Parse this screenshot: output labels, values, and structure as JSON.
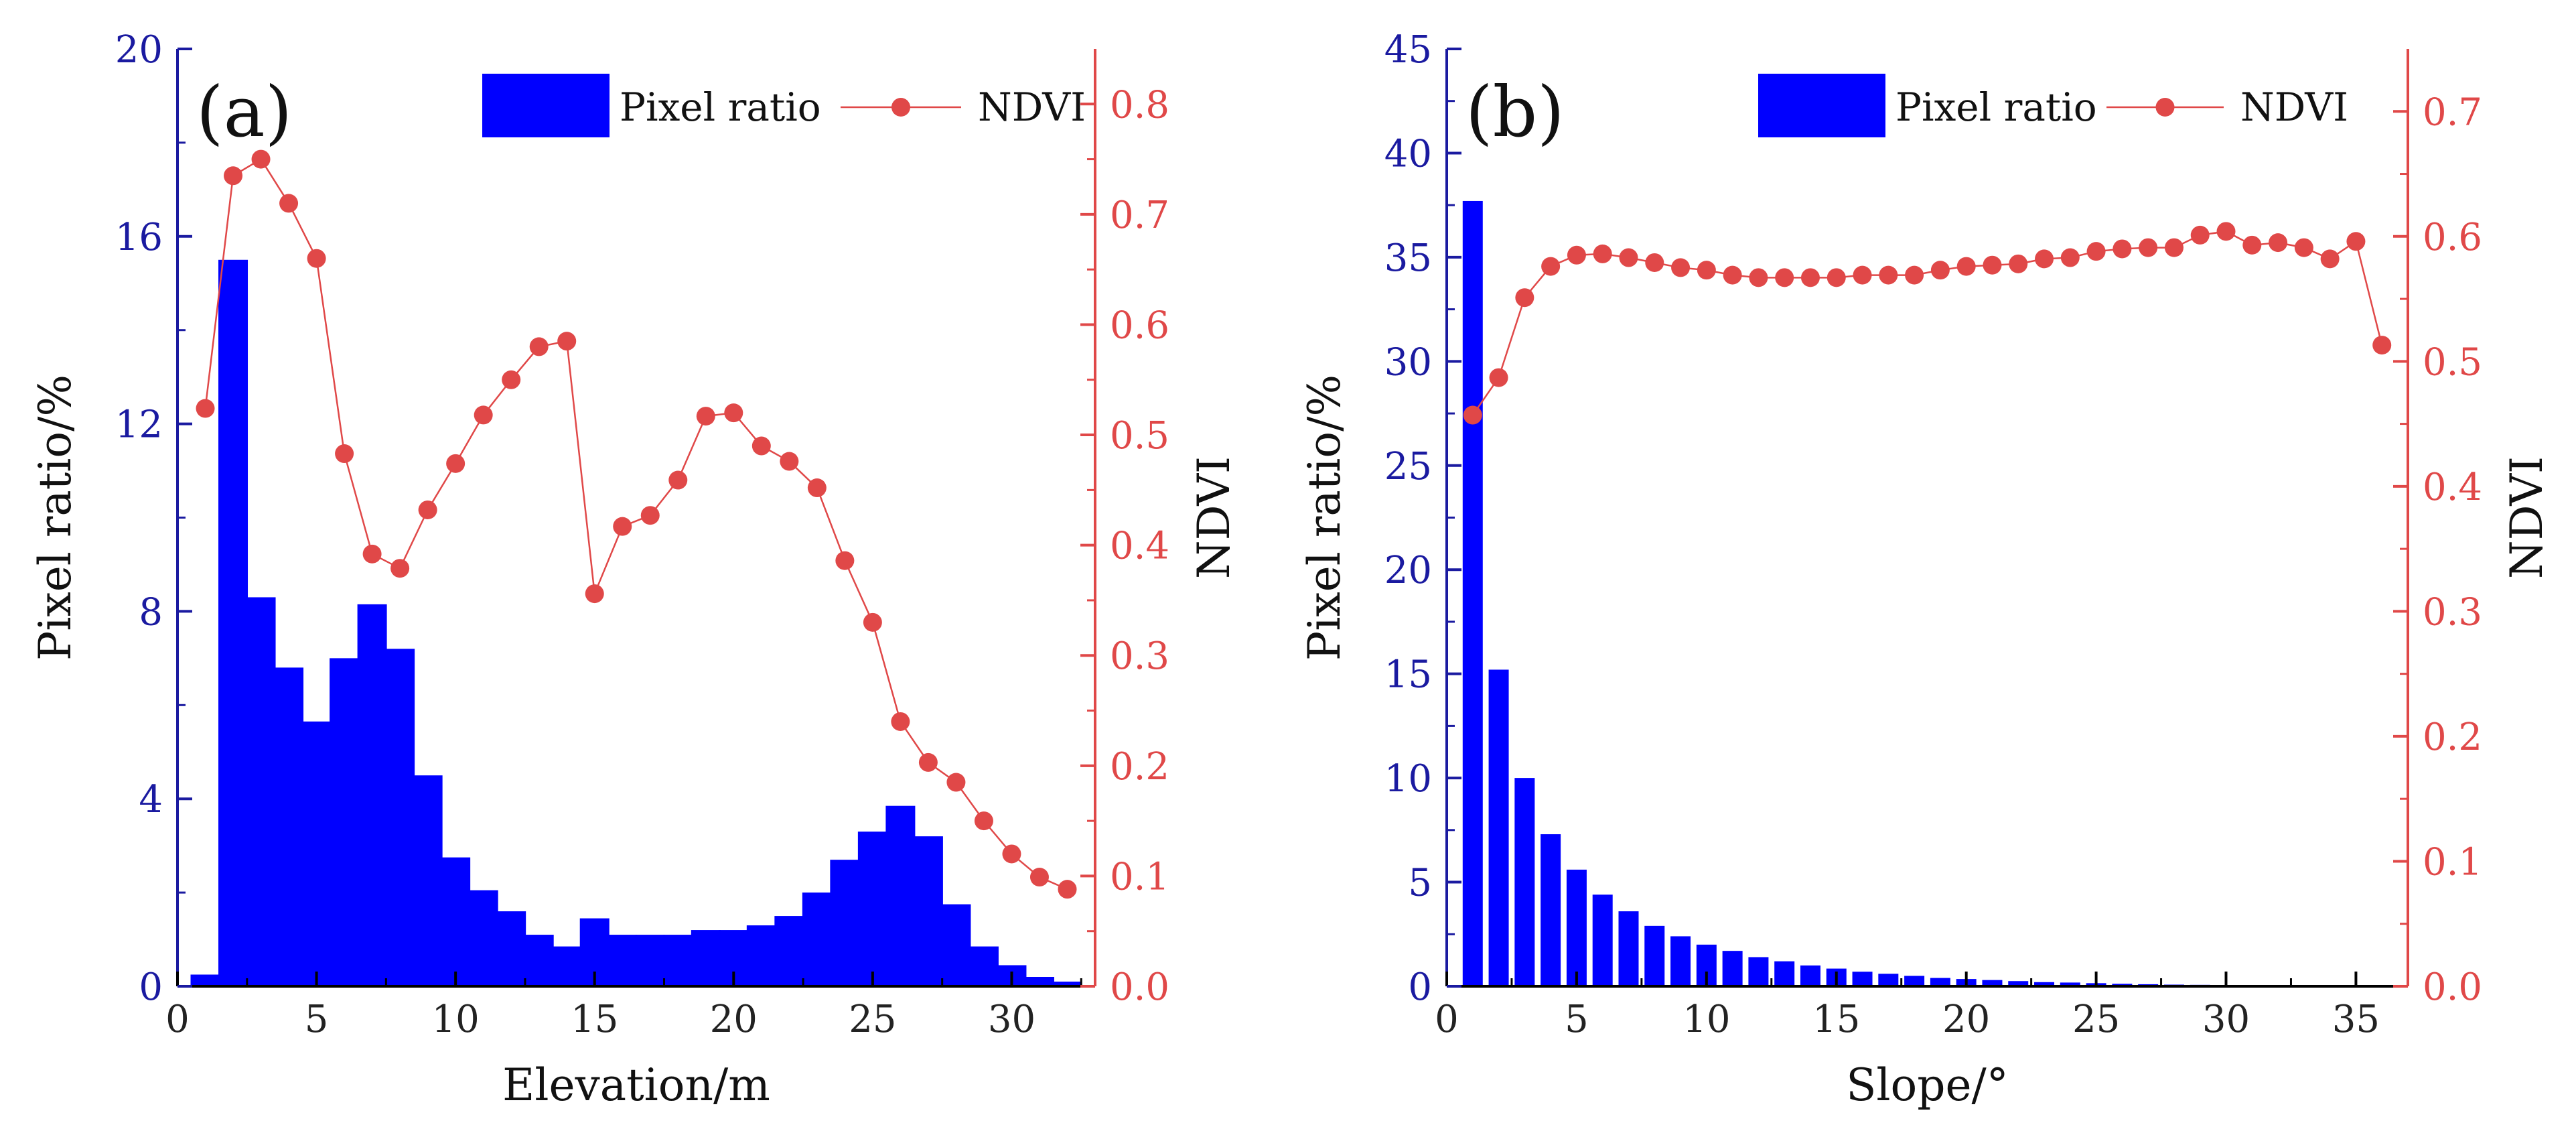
{
  "colors": {
    "bar": "#0000ff",
    "ndvi": "#e04848",
    "left_axis": "#1a1aa0",
    "right_axis": "#e04848",
    "axis": "#000000"
  },
  "chart_data": [
    {
      "panel": "(a)",
      "type": "bar",
      "xlabel": "Elevation/m",
      "ylabel": "Pixel ratio/%",
      "y2label": "NDVI",
      "xlim": [
        0,
        33
      ],
      "ylim": [
        0,
        20
      ],
      "y2lim": [
        0,
        0.85
      ],
      "xticks": [
        0,
        5,
        10,
        15,
        20,
        25,
        30
      ],
      "yticks": [
        0,
        4,
        8,
        12,
        16,
        20
      ],
      "y2ticks": [
        0.0,
        0.1,
        0.2,
        0.3,
        0.4,
        0.5,
        0.6,
        0.7,
        0.8
      ],
      "legend": {
        "position": "top-right",
        "bar_label": "Pixel ratio",
        "line_label": "NDVI"
      },
      "series": [
        {
          "name": "Pixel ratio",
          "kind": "bar",
          "axis": "left",
          "x": [
            1,
            2,
            3,
            4,
            5,
            6,
            7,
            8,
            9,
            10,
            11,
            12,
            13,
            14,
            15,
            16,
            17,
            18,
            19,
            20,
            21,
            22,
            23,
            24,
            25,
            26,
            27,
            28,
            29,
            30,
            31,
            32
          ],
          "values": [
            0.25,
            15.5,
            8.3,
            6.8,
            5.65,
            7.0,
            8.15,
            7.2,
            4.5,
            2.75,
            2.05,
            1.6,
            1.1,
            0.85,
            1.45,
            1.1,
            1.1,
            1.1,
            1.2,
            1.2,
            1.3,
            1.5,
            2.0,
            2.7,
            3.3,
            3.85,
            3.2,
            1.75,
            0.85,
            0.45,
            0.2,
            0.1
          ]
        },
        {
          "name": "NDVI",
          "kind": "line",
          "axis": "right",
          "x": [
            1,
            2,
            3,
            4,
            5,
            6,
            7,
            8,
            9,
            10,
            11,
            12,
            13,
            14,
            15,
            16,
            17,
            18,
            19,
            20,
            21,
            22,
            23,
            24,
            25,
            26,
            27,
            28,
            29,
            30,
            31,
            32
          ],
          "values": [
            0.524,
            0.735,
            0.75,
            0.71,
            0.66,
            0.483,
            0.392,
            0.379,
            0.432,
            0.474,
            0.518,
            0.55,
            0.58,
            0.585,
            0.356,
            0.417,
            0.427,
            0.459,
            0.517,
            0.52,
            0.49,
            0.476,
            0.452,
            0.386,
            0.33,
            0.24,
            0.203,
            0.185,
            0.15,
            0.12,
            0.099,
            0.088
          ]
        }
      ]
    },
    {
      "panel": "(b)",
      "type": "bar",
      "xlabel": "Slope/°",
      "ylabel": "Pixel ratio/%",
      "y2label": "NDVI",
      "xlim": [
        0,
        37
      ],
      "ylim": [
        0,
        45
      ],
      "y2lim": [
        0,
        0.75
      ],
      "xticks": [
        0,
        5,
        10,
        15,
        20,
        25,
        30,
        35
      ],
      "yticks": [
        0,
        5,
        10,
        15,
        20,
        25,
        30,
        35,
        40,
        45
      ],
      "y2ticks": [
        0.0,
        0.1,
        0.2,
        0.3,
        0.4,
        0.5,
        0.6,
        0.7
      ],
      "legend": {
        "position": "top-right",
        "bar_label": "Pixel ratio",
        "line_label": "NDVI"
      },
      "series": [
        {
          "name": "Pixel ratio",
          "kind": "bar",
          "axis": "left",
          "x": [
            1,
            2,
            3,
            4,
            5,
            6,
            7,
            8,
            9,
            10,
            11,
            12,
            13,
            14,
            15,
            16,
            17,
            18,
            19,
            20,
            21,
            22,
            23,
            24,
            25,
            26,
            27,
            28,
            29,
            30,
            31,
            32,
            33,
            34,
            35,
            36
          ],
          "values": [
            37.7,
            15.2,
            10.0,
            7.3,
            5.6,
            4.4,
            3.6,
            2.9,
            2.4,
            2.0,
            1.7,
            1.4,
            1.2,
            1.0,
            0.85,
            0.7,
            0.6,
            0.5,
            0.4,
            0.35,
            0.3,
            0.25,
            0.2,
            0.18,
            0.15,
            0.12,
            0.1,
            0.08,
            0.07,
            0.06,
            0.05,
            0.04,
            0.03,
            0.03,
            0.02,
            0.02
          ]
        },
        {
          "name": "NDVI",
          "kind": "line",
          "axis": "right",
          "x": [
            1,
            2,
            3,
            4,
            5,
            6,
            7,
            8,
            9,
            10,
            11,
            12,
            13,
            14,
            15,
            16,
            17,
            18,
            19,
            20,
            21,
            22,
            23,
            24,
            25,
            26,
            27,
            28,
            29,
            30,
            31,
            32,
            33,
            34,
            35,
            36
          ],
          "values": [
            0.457,
            0.487,
            0.551,
            0.576,
            0.585,
            0.586,
            0.583,
            0.579,
            0.575,
            0.573,
            0.569,
            0.567,
            0.567,
            0.567,
            0.567,
            0.569,
            0.569,
            0.569,
            0.573,
            0.576,
            0.577,
            0.578,
            0.582,
            0.583,
            0.588,
            0.59,
            0.591,
            0.591,
            0.601,
            0.604,
            0.593,
            0.595,
            0.591,
            0.582,
            0.596,
            0.513
          ]
        }
      ]
    }
  ]
}
